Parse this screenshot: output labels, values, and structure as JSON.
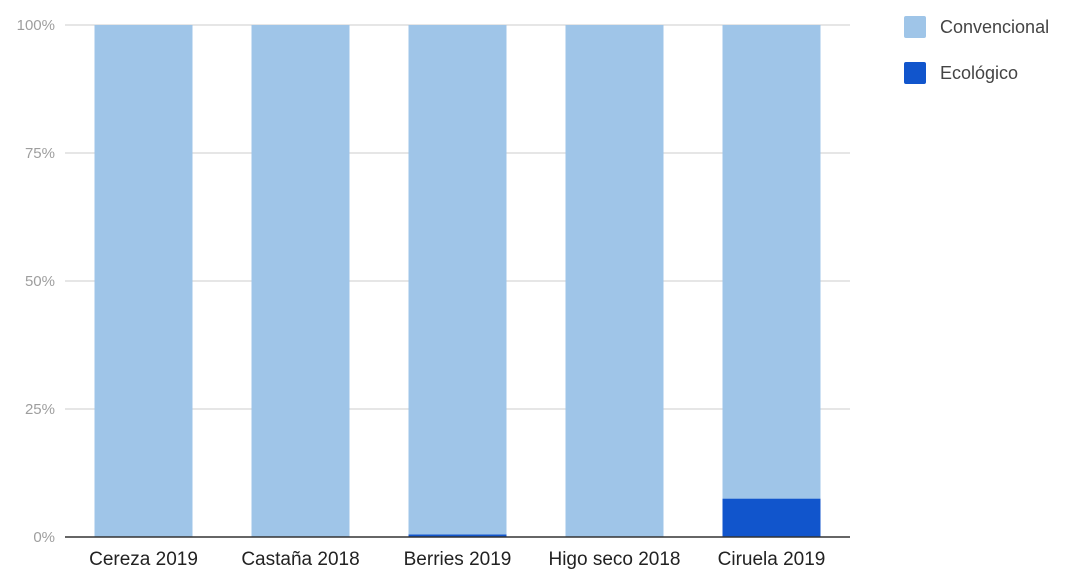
{
  "chart_data": {
    "type": "bar",
    "stacked": true,
    "percent_stacked": true,
    "categories": [
      "Cereza 2019",
      "Castaña 2018",
      "Berries 2019",
      "Higo seco 2018",
      "Ciruela 2019"
    ],
    "series": [
      {
        "name": "Ecológico",
        "color": "#1155cc",
        "values": [
          0,
          0,
          0.5,
          0,
          7.5
        ]
      },
      {
        "name": "Convencional",
        "color": "#9fc5e8",
        "values": [
          100,
          100,
          99.5,
          100,
          92.5
        ]
      }
    ],
    "yticks": [
      "0%",
      "25%",
      "50%",
      "75%",
      "100%"
    ],
    "ylim": [
      0,
      100
    ],
    "grid": true,
    "legend_position": "top-right",
    "legend": [
      "Convencional",
      "Ecológico"
    ]
  }
}
